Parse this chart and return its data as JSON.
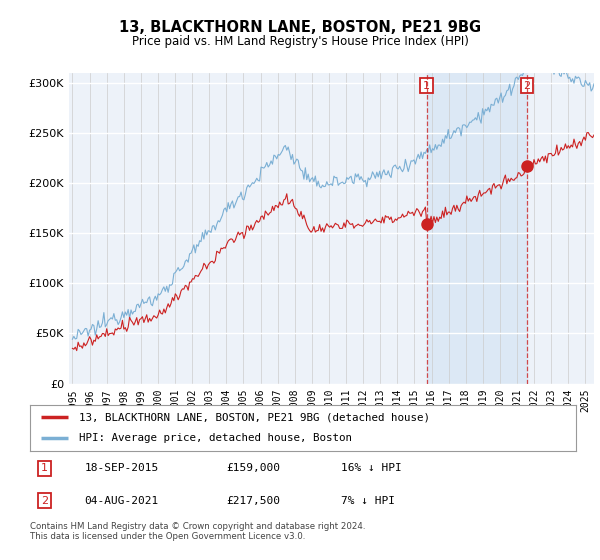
{
  "title": "13, BLACKTHORN LANE, BOSTON, PE21 9BG",
  "subtitle": "Price paid vs. HM Land Registry's House Price Index (HPI)",
  "hpi_color": "#7bafd4",
  "price_color": "#cc2222",
  "bg_color": "#edf2f9",
  "shade_color": "#dce8f5",
  "sale1": {
    "date": "18-SEP-2015",
    "price": 159000,
    "year": 2015.72,
    "label": "1",
    "pct": "16% ↓ HPI"
  },
  "sale2": {
    "date": "04-AUG-2021",
    "price": 217500,
    "year": 2021.59,
    "label": "2",
    "pct": "7% ↓ HPI"
  },
  "legend_line1": "13, BLACKTHORN LANE, BOSTON, PE21 9BG (detached house)",
  "legend_line2": "HPI: Average price, detached house, Boston",
  "footnote": "Contains HM Land Registry data © Crown copyright and database right 2024.\nThis data is licensed under the Open Government Licence v3.0.",
  "ylim": [
    0,
    310000
  ],
  "xlim_start": 1994.8,
  "xlim_end": 2025.5
}
